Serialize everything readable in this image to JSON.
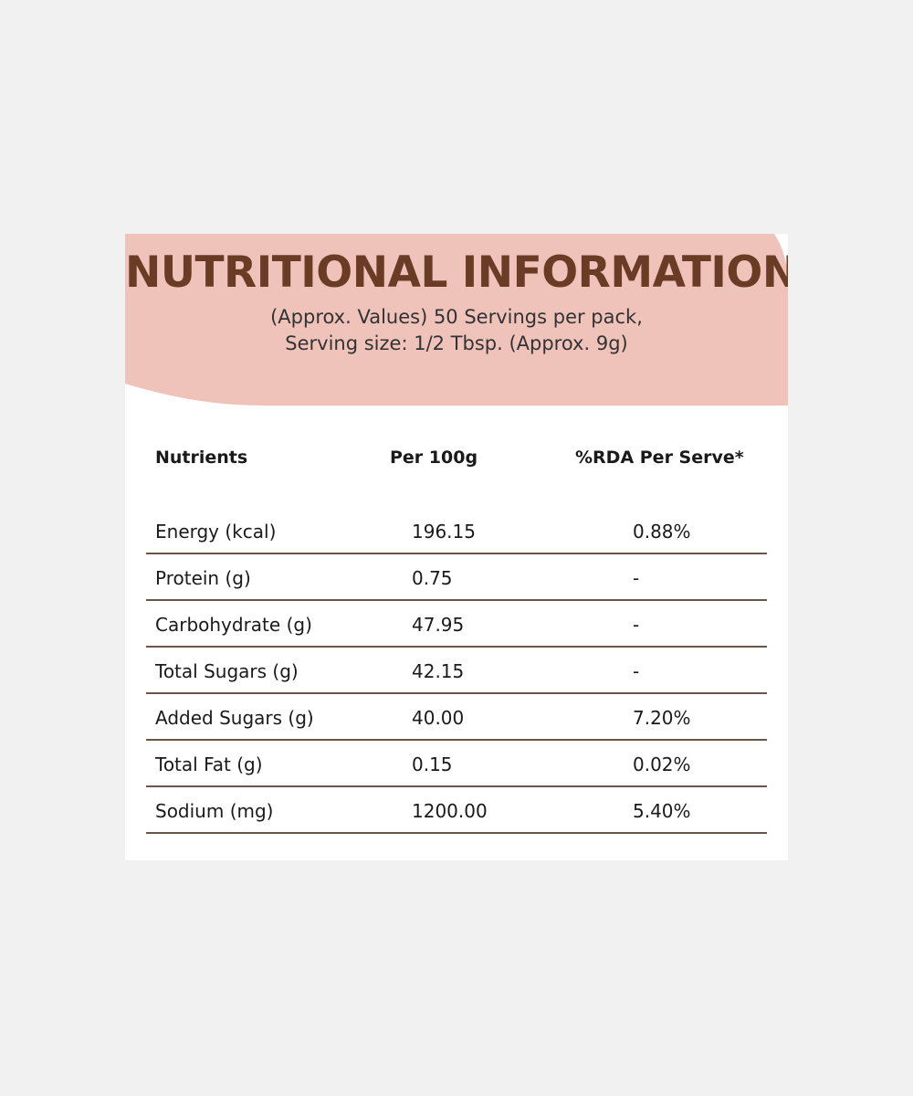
{
  "panel": {
    "title": "NUTRITIONAL INFORMATION",
    "subtitle_line1": "(Approx. Values) 50 Servings per pack,",
    "subtitle_line2": "Serving size: 1/2 Tbsp. (Approx. 9g)",
    "header_color": "#efc3ba",
    "title_color": "#6b3c25"
  },
  "table": {
    "headers": [
      "Nutrients",
      "Per 100g",
      "%RDA Per Serve*"
    ],
    "rows": [
      {
        "nutrient": "Energy (kcal)",
        "per100g": "196.15",
        "rda": "0.88%"
      },
      {
        "nutrient": "Protein (g)",
        "per100g": "0.75",
        "rda": "-"
      },
      {
        "nutrient": "Carbohydrate (g)",
        "per100g": "47.95",
        "rda": "-"
      },
      {
        "nutrient": "Total Sugars (g)",
        "per100g": "42.15",
        "rda": "-"
      },
      {
        "nutrient": "Added Sugars (g)",
        "per100g": "40.00",
        "rda": "7.20%"
      },
      {
        "nutrient": "Total Fat (g)",
        "per100g": "0.15",
        "rda": "0.02%"
      },
      {
        "nutrient": "Sodium (mg)",
        "per100g": "1200.00",
        "rda": "5.40%"
      }
    ]
  }
}
